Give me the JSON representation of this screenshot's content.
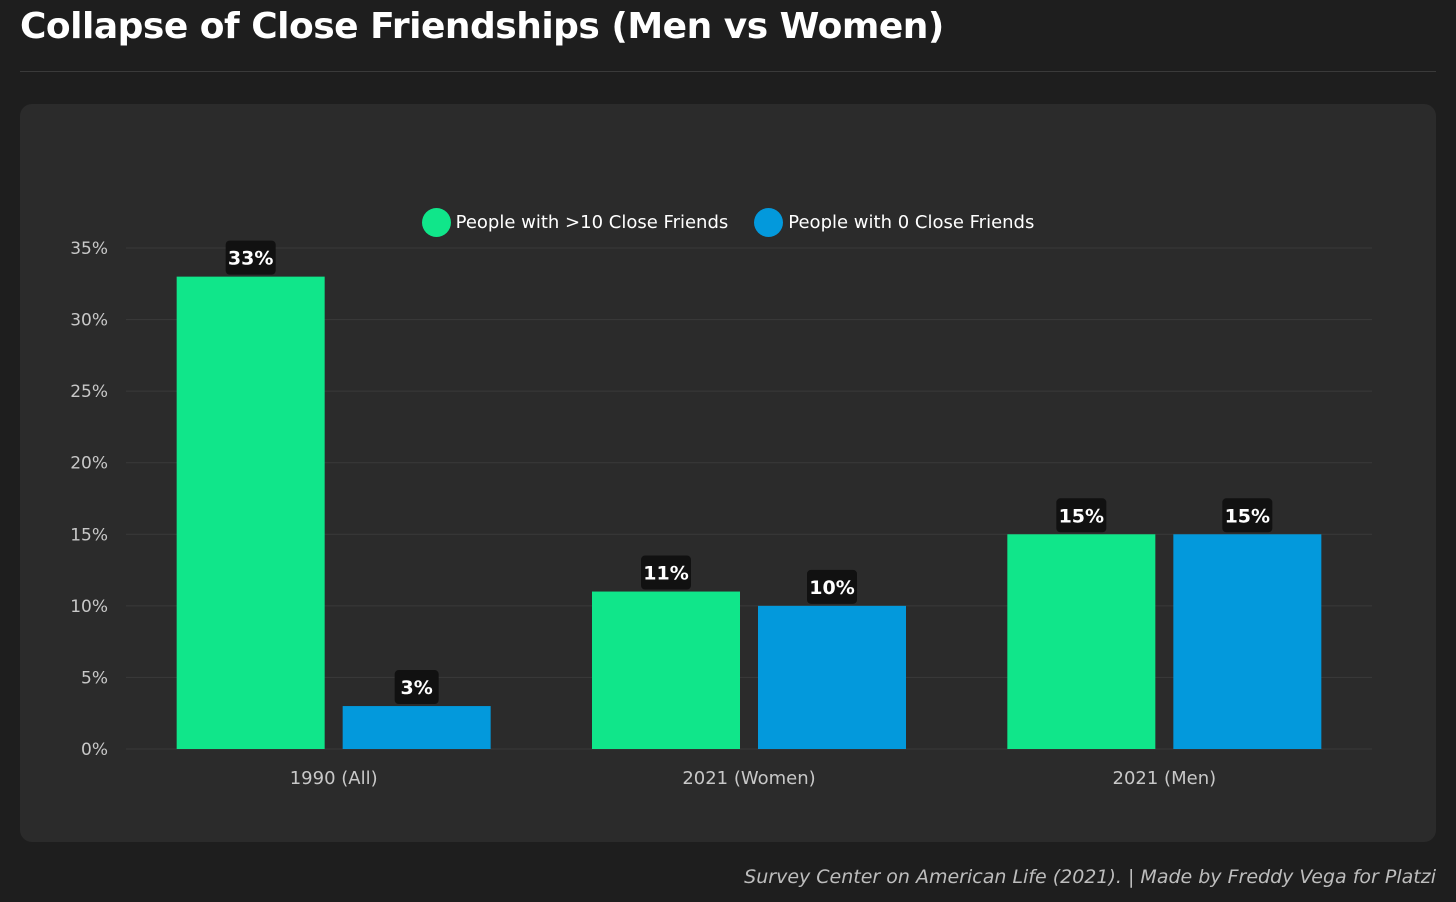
{
  "page": {
    "title": "Collapse of Close Friendships (Men vs Women)",
    "source": "Survey Center on American Life (2021). | Made by Freddy Vega for Platzi"
  },
  "colors": {
    "background": "#1e1e1e",
    "card": "#2b2b2b",
    "series_green": "#10e68a",
    "series_blue": "#0399dc",
    "label_bg": "#111111",
    "axis_text": "#c8c8c8",
    "grid": "#3a3a3a"
  },
  "chart_data": {
    "type": "bar",
    "title": "Collapse of Close Friendships (Men vs Women)",
    "xlabel": "",
    "ylabel": "",
    "categories": [
      "1990 (All)",
      "2021 (Women)",
      "2021 (Men)"
    ],
    "series": [
      {
        "name": "People with >10 Close Friends",
        "color": "#10e68a",
        "values": [
          33,
          11,
          15
        ]
      },
      {
        "name": "People with 0 Close Friends",
        "color": "#0399dc",
        "values": [
          3,
          10,
          15
        ]
      }
    ],
    "ylim": [
      0,
      35
    ],
    "yticks": [
      0,
      5,
      10,
      15,
      20,
      25,
      30,
      35
    ],
    "ytick_labels": [
      "0%",
      "5%",
      "10%",
      "15%",
      "20%",
      "25%",
      "30%",
      "35%"
    ],
    "value_labels": [
      [
        "33%",
        "11%",
        "15%"
      ],
      [
        "3%",
        "10%",
        "15%"
      ]
    ],
    "grid": true,
    "legend_position": "top-center"
  }
}
